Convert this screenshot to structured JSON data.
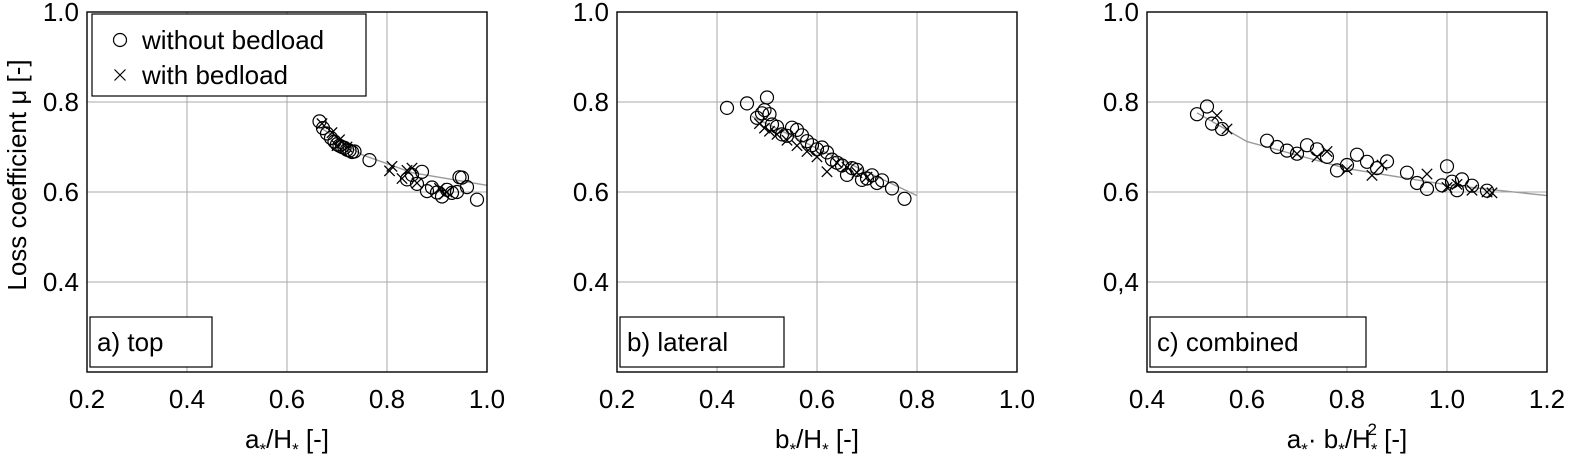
{
  "figure": {
    "ylabel": "Loss coefficient μ [-]",
    "legend": {
      "items": [
        {
          "label": "without bedload",
          "marker": "circle"
        },
        {
          "label": "with bedload",
          "marker": "cross"
        }
      ],
      "placement": "top-left of panel a"
    },
    "colors": {
      "markers": "#000000",
      "fit_line": "#9a9a9a",
      "grid": "#a8a8a8"
    }
  },
  "chart_data": [
    {
      "type": "scatter",
      "panel_label": "a) top",
      "xlabel_parts": [
        "a",
        "*",
        "/H",
        "*",
        " [-]"
      ],
      "xlim": [
        0.2,
        1.0
      ],
      "ylim": [
        0.2,
        1.0
      ],
      "xticks": [
        "0.2",
        "0.4",
        "0.6",
        "0.8",
        "1.0"
      ],
      "yticks": [
        "0.4",
        "0.6",
        "0.8",
        "1.0"
      ],
      "grid": true,
      "series": [
        {
          "name": "without bedload",
          "marker": "circle",
          "x": [
            0.665,
            0.672,
            0.68,
            0.688,
            0.695,
            0.7,
            0.705,
            0.71,
            0.715,
            0.72,
            0.725,
            0.73,
            0.735,
            0.765,
            0.84,
            0.85,
            0.86,
            0.87,
            0.88,
            0.89,
            0.9,
            0.91,
            0.92,
            0.93,
            0.94,
            0.945,
            0.95,
            0.96,
            0.98
          ],
          "y": [
            0.757,
            0.742,
            0.73,
            0.72,
            0.712,
            0.706,
            0.703,
            0.7,
            0.698,
            0.694,
            0.692,
            0.689,
            0.69,
            0.671,
            0.628,
            0.638,
            0.618,
            0.645,
            0.602,
            0.61,
            0.599,
            0.59,
            0.605,
            0.598,
            0.6,
            0.633,
            0.632,
            0.611,
            0.583
          ]
        },
        {
          "name": "with bedload",
          "marker": "cross",
          "x": [
            0.67,
            0.69,
            0.7,
            0.705,
            0.72,
            0.805,
            0.81,
            0.83,
            0.84,
            0.85,
            0.86,
            0.905,
            0.915,
            0.92
          ],
          "y": [
            0.752,
            0.732,
            0.703,
            0.716,
            0.7,
            0.647,
            0.657,
            0.63,
            0.648,
            0.653,
            0.62,
            0.608,
            0.595,
            0.6
          ]
        }
      ],
      "fit_line": {
        "x": [
          0.66,
          0.75,
          0.85,
          1.0
        ],
        "y": [
          0.748,
          0.683,
          0.643,
          0.615
        ]
      }
    },
    {
      "type": "scatter",
      "panel_label": "b) lateral",
      "xlabel_parts": [
        "b",
        "*",
        "/H",
        "*",
        " [-]"
      ],
      "xlim": [
        0.2,
        1.0
      ],
      "ylim": [
        0.2,
        1.0
      ],
      "xticks": [
        "0.2",
        "0.4",
        "0.6",
        "0.8",
        "1.0"
      ],
      "yticks": [
        "0.4",
        "0.6",
        "0.8",
        "1.0"
      ],
      "grid": true,
      "series": [
        {
          "name": "without bedload",
          "marker": "circle",
          "x": [
            0.42,
            0.46,
            0.48,
            0.49,
            0.495,
            0.5,
            0.505,
            0.51,
            0.52,
            0.53,
            0.54,
            0.55,
            0.56,
            0.57,
            0.58,
            0.59,
            0.6,
            0.61,
            0.62,
            0.63,
            0.64,
            0.65,
            0.66,
            0.67,
            0.68,
            0.69,
            0.7,
            0.71,
            0.72,
            0.73,
            0.75,
            0.775
          ],
          "y": [
            0.787,
            0.797,
            0.765,
            0.775,
            0.782,
            0.81,
            0.773,
            0.75,
            0.745,
            0.728,
            0.725,
            0.743,
            0.738,
            0.726,
            0.713,
            0.704,
            0.695,
            0.699,
            0.688,
            0.672,
            0.665,
            0.659,
            0.638,
            0.653,
            0.649,
            0.627,
            0.63,
            0.637,
            0.62,
            0.626,
            0.608,
            0.585
          ]
        },
        {
          "name": "with bedload",
          "marker": "cross",
          "x": [
            0.485,
            0.495,
            0.505,
            0.52,
            0.54,
            0.56,
            0.58,
            0.6,
            0.62,
            0.64,
            0.66,
            0.68,
            0.7
          ],
          "y": [
            0.752,
            0.742,
            0.735,
            0.728,
            0.715,
            0.703,
            0.69,
            0.678,
            0.645,
            0.665,
            0.655,
            0.643,
            0.633
          ]
        }
      ],
      "fit_line": {
        "x": [
          0.47,
          0.6,
          0.8
        ],
        "y": [
          0.768,
          0.697,
          0.592
        ]
      }
    },
    {
      "type": "scatter",
      "panel_label": "c) combined",
      "xlabel_parts": [
        "a",
        "*",
        "· b",
        "*",
        "/H",
        "*",
        "2",
        " [-]"
      ],
      "xlim": [
        0.4,
        1.2
      ],
      "ylim": [
        0.2,
        1.0
      ],
      "xticks": [
        "0.4",
        "0.6",
        "0.8",
        "1.0",
        "1.2"
      ],
      "yticks": [
        "0,4",
        "0.6",
        "0.8",
        "1.0"
      ],
      "grid": true,
      "series": [
        {
          "name": "without bedload",
          "marker": "circle",
          "x": [
            0.5,
            0.52,
            0.53,
            0.55,
            0.64,
            0.66,
            0.68,
            0.7,
            0.72,
            0.74,
            0.76,
            0.78,
            0.8,
            0.82,
            0.84,
            0.86,
            0.88,
            0.92,
            0.94,
            0.96,
            0.99,
            1.0,
            1.01,
            1.02,
            1.03,
            1.05,
            1.08
          ],
          "y": [
            0.773,
            0.79,
            0.752,
            0.74,
            0.714,
            0.7,
            0.692,
            0.685,
            0.704,
            0.695,
            0.678,
            0.648,
            0.66,
            0.683,
            0.667,
            0.653,
            0.668,
            0.643,
            0.62,
            0.607,
            0.615,
            0.657,
            0.623,
            0.604,
            0.628,
            0.614,
            0.603
          ]
        },
        {
          "name": "with bedload",
          "marker": "cross",
          "x": [
            0.54,
            0.56,
            0.7,
            0.74,
            0.76,
            0.8,
            0.85,
            0.87,
            0.96,
            1.0,
            1.02,
            1.05,
            1.08,
            1.09
          ],
          "y": [
            0.77,
            0.74,
            0.685,
            0.678,
            0.69,
            0.65,
            0.637,
            0.66,
            0.64,
            0.61,
            0.617,
            0.604,
            0.6,
            0.598
          ]
        }
      ],
      "fit_line": {
        "x": [
          0.5,
          0.6,
          0.8,
          1.0,
          1.2
        ],
        "y": [
          0.776,
          0.712,
          0.652,
          0.616,
          0.592
        ]
      }
    }
  ]
}
